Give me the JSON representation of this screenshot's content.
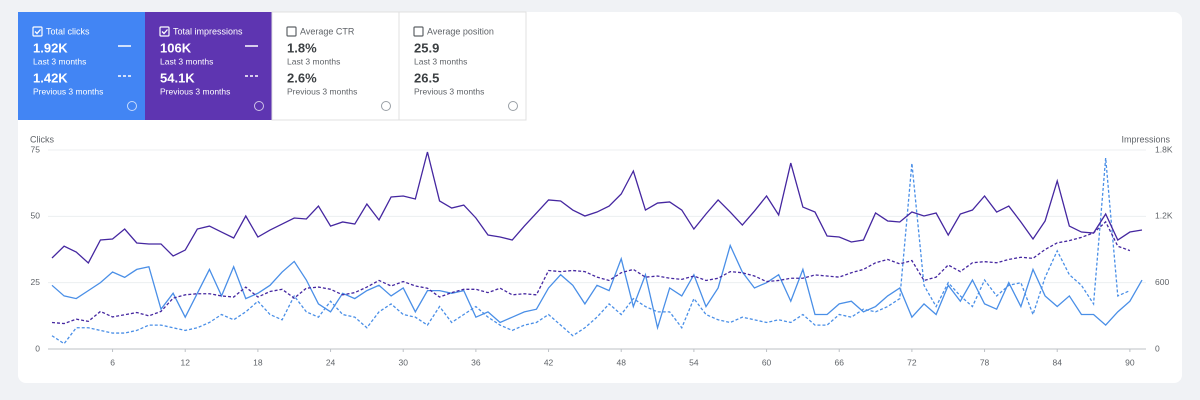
{
  "cards": [
    {
      "label": "Total clicks",
      "checked": true,
      "color": "#4285f4",
      "value": "1.92K",
      "period": "Last 3 months",
      "prev_value": "1.42K",
      "prev_period": "Previous 3 months"
    },
    {
      "label": "Total impressions",
      "checked": true,
      "color": "#5e35b1",
      "value": "106K",
      "period": "Last 3 months",
      "prev_value": "54.1K",
      "prev_period": "Previous 3 months"
    },
    {
      "label": "Average CTR",
      "checked": false,
      "value": "1.8%",
      "period": "Last 3 months",
      "prev_value": "2.6%",
      "prev_period": "Previous 3 months"
    },
    {
      "label": "Average position",
      "checked": false,
      "value": "25.9",
      "period": "Last 3 months",
      "prev_value": "26.5",
      "prev_period": "Previous 3 months"
    }
  ],
  "chart_data": {
    "type": "line",
    "y_label": "Clicks",
    "y2_label": "Impressions",
    "x": [
      1,
      2,
      3,
      4,
      5,
      6,
      7,
      8,
      9,
      10,
      11,
      12,
      13,
      14,
      15,
      16,
      17,
      18,
      19,
      20,
      21,
      22,
      23,
      24,
      25,
      26,
      27,
      28,
      29,
      30,
      31,
      32,
      33,
      34,
      35,
      36,
      37,
      38,
      39,
      40,
      41,
      42,
      43,
      44,
      45,
      46,
      47,
      48,
      49,
      50,
      51,
      52,
      53,
      54,
      55,
      56,
      57,
      58,
      59,
      60,
      61,
      62,
      63,
      64,
      65,
      66,
      67,
      68,
      69,
      70,
      71,
      72,
      73,
      74,
      75,
      76,
      77,
      78,
      79,
      80,
      81,
      82,
      83,
      84,
      85,
      86,
      87,
      88,
      89,
      90,
      91
    ],
    "xlim": [
      1,
      91
    ],
    "xticks": [
      6,
      12,
      18,
      24,
      30,
      36,
      42,
      48,
      54,
      60,
      66,
      72,
      78,
      84,
      90
    ],
    "ylim": [
      0,
      75
    ],
    "yticks": [
      0,
      25,
      50,
      75
    ],
    "y2lim": [
      0,
      1800
    ],
    "y2ticks": [
      0,
      600,
      {
        "value": 1200,
        "label": "1.2K"
      },
      {
        "value": 1800,
        "label": "1.8K"
      }
    ],
    "grid": true,
    "series": [
      {
        "color": "#4a8fe7",
        "dashed": false,
        "values": [
          24,
          20,
          19,
          22,
          25,
          29,
          27,
          30,
          31,
          15,
          21,
          12,
          21,
          30,
          20,
          31,
          19,
          21,
          24,
          29,
          33,
          26,
          17,
          14,
          21,
          19,
          22,
          24,
          20,
          23,
          14,
          22,
          22,
          21,
          22,
          12,
          14,
          10,
          12,
          14,
          15,
          23,
          28,
          24,
          17,
          24,
          22,
          34,
          16,
          28,
          8,
          23,
          20,
          28,
          16,
          23,
          39,
          29,
          23,
          25,
          28,
          18,
          30,
          13,
          13,
          17,
          18,
          14,
          16,
          20,
          23,
          12,
          17,
          13,
          24,
          18,
          26,
          17,
          15,
          25,
          16,
          30,
          20,
          16,
          20,
          13,
          13,
          9,
          14,
          18,
          26
        ]
      },
      {
        "color": "#4a8fe7",
        "dashed": true,
        "values": [
          5,
          2,
          8,
          8,
          7,
          6,
          6,
          7,
          9,
          9,
          8,
          7,
          8,
          10,
          13,
          11,
          14,
          18,
          13,
          11,
          20,
          14,
          12,
          18,
          13,
          12,
          8,
          14,
          17,
          13,
          12,
          9,
          16,
          10,
          13,
          16,
          12,
          9,
          7,
          9,
          10,
          13,
          9,
          5,
          8,
          12,
          17,
          13,
          19,
          16,
          14,
          14,
          8,
          19,
          13,
          11,
          10,
          12,
          11,
          10,
          11,
          10,
          13,
          9,
          9,
          13,
          12,
          15,
          14,
          16,
          19,
          70,
          24,
          16,
          25,
          20,
          16,
          26,
          20,
          24,
          25,
          13,
          27,
          37,
          28,
          24,
          17,
          72,
          20,
          22,
          null
        ]
      },
      {
        "color": "#4527a0",
        "dashed": false,
        "axis": "y2",
        "values": [
          823,
          930,
          877,
          778,
          986,
          995,
          1085,
          959,
          950,
          950,
          841,
          895,
          1085,
          1112,
          1058,
          1004,
          1203,
          1013,
          1076,
          1130,
          1185,
          1176,
          1293,
          1112,
          1149,
          1130,
          1311,
          1167,
          1375,
          1384,
          1357,
          1782,
          1339,
          1275,
          1302,
          1185,
          1031,
          1013,
          986,
          1112,
          1230,
          1348,
          1339,
          1257,
          1203,
          1239,
          1293,
          1402,
          1610,
          1257,
          1320,
          1330,
          1257,
          1085,
          1221,
          1348,
          1239,
          1121,
          1248,
          1384,
          1212,
          1682,
          1284,
          1239,
          1022,
          1013,
          968,
          986,
          1230,
          1158,
          1149,
          1239,
          1203,
          1230,
          1031,
          1221,
          1257,
          1384,
          1239,
          1293,
          1149,
          995,
          1158,
          1520,
          1112,
          1058,
          1049,
          1221,
          986,
          1058,
          1076
        ]
      },
      {
        "color": "#4527a0",
        "dashed": true,
        "axis": "y2",
        "values": [
          240,
          230,
          270,
          250,
          340,
          290,
          310,
          330,
          300,
          340,
          460,
          490,
          500,
          500,
          480,
          470,
          560,
          470,
          520,
          540,
          460,
          550,
          560,
          540,
          490,
          510,
          560,
          620,
          570,
          610,
          570,
          550,
          470,
          510,
          540,
          540,
          510,
          550,
          490,
          500,
          490,
          710,
          700,
          710,
          700,
          650,
          620,
          690,
          720,
          650,
          660,
          640,
          630,
          660,
          620,
          640,
          700,
          690,
          660,
          610,
          620,
          640,
          640,
          670,
          660,
          650,
          690,
          720,
          780,
          810,
          770,
          800,
          620,
          650,
          760,
          700,
          780,
          790,
          780,
          810,
          830,
          820,
          900,
          960,
          980,
          1010,
          1050,
          1150,
          930,
          890,
          null
        ]
      }
    ]
  }
}
